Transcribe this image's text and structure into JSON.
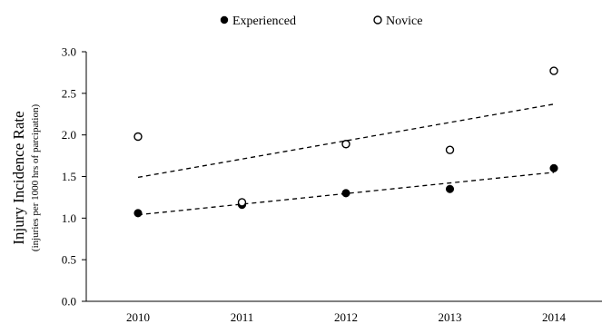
{
  "chart_data": {
    "type": "scatter",
    "title": "",
    "xlabel": "",
    "ylabel": "Injury Incidence Rate",
    "ylabel_sub": "(injuries per 1000 hrs of parcipation)",
    "x": [
      2010,
      2011,
      2012,
      2013,
      2014
    ],
    "x_ticks": [
      "2010",
      "2011",
      "2012",
      "2013",
      "2014"
    ],
    "ylim": [
      0,
      3.0
    ],
    "y_ticks": [
      "0.0",
      "0.5",
      "1.0",
      "1.5",
      "2.0",
      "2.5",
      "3.0"
    ],
    "grid": false,
    "legend_position": "top",
    "series": [
      {
        "name": "Experienced",
        "marker": "filled-circle",
        "color": "#000000",
        "values": [
          1.06,
          1.16,
          1.3,
          1.35,
          1.6
        ],
        "trendline": {
          "style": "dashed",
          "start": 1.04,
          "end": 1.55
        }
      },
      {
        "name": "Novice",
        "marker": "open-circle",
        "color": "#000000",
        "values": [
          1.98,
          1.19,
          1.89,
          1.82,
          2.77
        ],
        "trendline": {
          "style": "dashed",
          "start": 1.49,
          "end": 2.37
        }
      }
    ]
  }
}
